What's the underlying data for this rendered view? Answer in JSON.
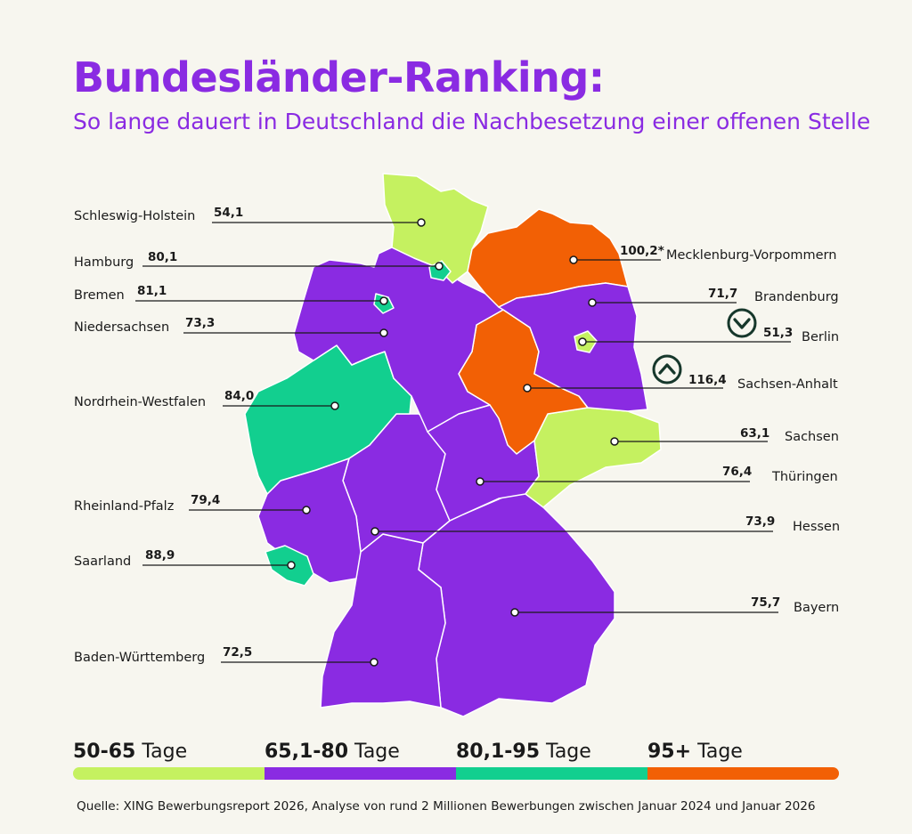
{
  "title": "Bundesländer-Ranking:",
  "subtitle": "So lange dauert in Deutschland die Nachbesetzung einer offenen Stelle",
  "colors": {
    "band_50_65": "#c5f160",
    "band_65_80": "#8a2be2",
    "band_80_95": "#12cf8f",
    "band_95_plus": "#f26005",
    "title": "#8a2be2",
    "marker_dark": "#16372b"
  },
  "states": [
    {
      "name": "Schleswig-Holstein",
      "value": "54,1",
      "band": "band_50_65"
    },
    {
      "name": "Hamburg",
      "value": "80,1",
      "band": "band_80_95"
    },
    {
      "name": "Bremen",
      "value": "81,1",
      "band": "band_80_95"
    },
    {
      "name": "Niedersachsen",
      "value": "73,3",
      "band": "band_65_80"
    },
    {
      "name": "Nordrhein-Westfalen",
      "value": "84,0",
      "band": "band_80_95"
    },
    {
      "name": "Rheinland-Pfalz",
      "value": "79,4",
      "band": "band_65_80"
    },
    {
      "name": "Saarland",
      "value": "88,9",
      "band": "band_80_95"
    },
    {
      "name": "Baden-Württemberg",
      "value": "72,5",
      "band": "band_65_80"
    },
    {
      "name": "Mecklenburg-Vorpommern",
      "value": "100,2*",
      "band": "band_95_plus"
    },
    {
      "name": "Brandenburg",
      "value": "71,7",
      "band": "band_65_80"
    },
    {
      "name": "Berlin",
      "value": "51,3",
      "band": "band_50_65",
      "marker": "down-circle-icon"
    },
    {
      "name": "Sachsen-Anhalt",
      "value": "116,4",
      "band": "band_95_plus",
      "marker": "up-circle-icon"
    },
    {
      "name": "Sachsen",
      "value": "63,1",
      "band": "band_50_65"
    },
    {
      "name": "Thüringen",
      "value": "76,4",
      "band": "band_65_80"
    },
    {
      "name": "Hessen",
      "value": "73,9",
      "band": "band_65_80"
    },
    {
      "name": "Bayern",
      "value": "75,7",
      "band": "band_65_80"
    }
  ],
  "legend": [
    {
      "range": "50-65",
      "unit": "Tage",
      "band": "band_50_65"
    },
    {
      "range": "65,1-80",
      "unit": "Tage",
      "band": "band_65_80"
    },
    {
      "range": "80,1-95",
      "unit": "Tage",
      "band": "band_80_95"
    },
    {
      "range": "95+",
      "unit": "Tage",
      "band": "band_95_plus"
    }
  ],
  "source": "Quelle: XING Bewerbungsreport 2026, Analyse von rund 2 Millionen Bewerbungen zwischen Januar 2024 und Januar 2026"
}
